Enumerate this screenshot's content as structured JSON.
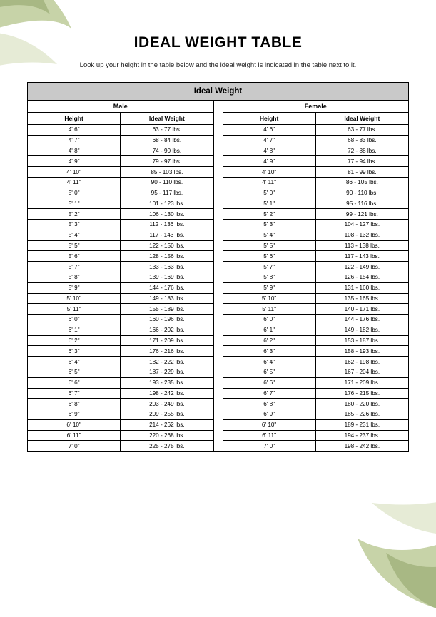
{
  "title": "IDEAL WEIGHT TABLE",
  "intro": "Look up your height in the table below and the ideal weight is indicated in the table next to it.",
  "caption": "Ideal Weight",
  "headers": {
    "height": "Height",
    "weight": "Ideal Weight"
  },
  "decor": {
    "swirl_outer": "#a8b884",
    "swirl_inner": "#c7d3a8",
    "swirl_light": "#e3e9d2"
  },
  "male": {
    "label": "Male",
    "rows": [
      {
        "h": "4' 6\"",
        "w": "63 - 77 lbs."
      },
      {
        "h": "4' 7\"",
        "w": "68 - 84 lbs."
      },
      {
        "h": "4' 8\"",
        "w": "74 - 90 lbs."
      },
      {
        "h": "4' 9\"",
        "w": "79 - 97 lbs."
      },
      {
        "h": "4' 10\"",
        "w": "85 - 103 lbs."
      },
      {
        "h": "4' 11\"",
        "w": "90 - 110 lbs."
      },
      {
        "h": "5' 0\"",
        "w": "95 - 117 lbs."
      },
      {
        "h": "5' 1\"",
        "w": "101 - 123 lbs."
      },
      {
        "h": "5' 2\"",
        "w": "106 - 130 lbs."
      },
      {
        "h": "5' 3\"",
        "w": "112 - 136 lbs."
      },
      {
        "h": "5' 4\"",
        "w": "117 - 143 lbs."
      },
      {
        "h": "5' 5\"",
        "w": "122 - 150 lbs."
      },
      {
        "h": "5' 6\"",
        "w": "128 - 156 lbs."
      },
      {
        "h": "5' 7\"",
        "w": "133 - 163 lbs."
      },
      {
        "h": "5' 8\"",
        "w": "139 - 169 lbs."
      },
      {
        "h": "5' 9\"",
        "w": "144 - 176 lbs."
      },
      {
        "h": "5' 10\"",
        "w": "149 - 183 lbs."
      },
      {
        "h": "5' 11\"",
        "w": "155 - 189 lbs."
      },
      {
        "h": "6' 0\"",
        "w": "160 - 196 lbs."
      },
      {
        "h": "6' 1\"",
        "w": "166 - 202 lbs."
      },
      {
        "h": "6' 2\"",
        "w": "171 - 209 lbs."
      },
      {
        "h": "6' 3\"",
        "w": "176 - 216 lbs."
      },
      {
        "h": "6' 4\"",
        "w": "182 - 222 lbs."
      },
      {
        "h": "6' 5\"",
        "w": "187 - 229 lbs."
      },
      {
        "h": "6' 6\"",
        "w": "193 - 235 lbs."
      },
      {
        "h": "6' 7\"",
        "w": "198 - 242 lbs."
      },
      {
        "h": "6' 8\"",
        "w": "203 - 249 lbs."
      },
      {
        "h": "6' 9\"",
        "w": "209 - 255 lbs."
      },
      {
        "h": "6' 10\"",
        "w": "214 - 262 lbs."
      },
      {
        "h": "6' 11\"",
        "w": "220 - 268 lbs."
      },
      {
        "h": "7' 0\"",
        "w": "225 - 275 lbs."
      }
    ]
  },
  "female": {
    "label": "Female",
    "rows": [
      {
        "h": "4' 6\"",
        "w": "63 - 77 lbs."
      },
      {
        "h": "4' 7\"",
        "w": "68 - 83 lbs."
      },
      {
        "h": "4' 8\"",
        "w": "72 - 88 lbs."
      },
      {
        "h": "4' 9\"",
        "w": "77 - 94 lbs."
      },
      {
        "h": "4' 10\"",
        "w": "81 - 99 lbs."
      },
      {
        "h": "4' 11\"",
        "w": "86 - 105 lbs."
      },
      {
        "h": "5' 0\"",
        "w": "90 - 110 lbs."
      },
      {
        "h": "5' 1\"",
        "w": "95 - 116 lbs."
      },
      {
        "h": "5' 2\"",
        "w": "99 - 121 lbs."
      },
      {
        "h": "5' 3\"",
        "w": "104 - 127 lbs."
      },
      {
        "h": "5' 4\"",
        "w": "108 - 132 lbs."
      },
      {
        "h": "5' 5\"",
        "w": "113 - 138 lbs."
      },
      {
        "h": "5' 6\"",
        "w": "117 - 143 lbs."
      },
      {
        "h": "5' 7\"",
        "w": "122 - 149 lbs."
      },
      {
        "h": "5' 8\"",
        "w": "126 - 154 lbs."
      },
      {
        "h": "5' 9\"",
        "w": "131 - 160 lbs."
      },
      {
        "h": "5' 10\"",
        "w": "135 - 165 lbs."
      },
      {
        "h": "5' 11\"",
        "w": "140 - 171 lbs."
      },
      {
        "h": "6' 0\"",
        "w": "144 - 176 lbs."
      },
      {
        "h": "6' 1\"",
        "w": "149 - 182 lbs."
      },
      {
        "h": "6' 2\"",
        "w": "153 - 187 lbs."
      },
      {
        "h": "6' 3\"",
        "w": "158 - 193 lbs."
      },
      {
        "h": "6' 4\"",
        "w": "162 - 198 lbs."
      },
      {
        "h": "6' 5\"",
        "w": "167 - 204 lbs."
      },
      {
        "h": "6' 6\"",
        "w": "171 - 209 lbs."
      },
      {
        "h": "6' 7\"",
        "w": "176 - 215 lbs."
      },
      {
        "h": "6' 8\"",
        "w": "180 - 220 lbs."
      },
      {
        "h": "6' 9\"",
        "w": "185 - 226 lbs."
      },
      {
        "h": "6' 10\"",
        "w": "189 - 231 lbs."
      },
      {
        "h": "6' 11\"",
        "w": "194 - 237 lbs."
      },
      {
        "h": "7' 0\"",
        "w": "198 - 242 lbs."
      }
    ]
  }
}
